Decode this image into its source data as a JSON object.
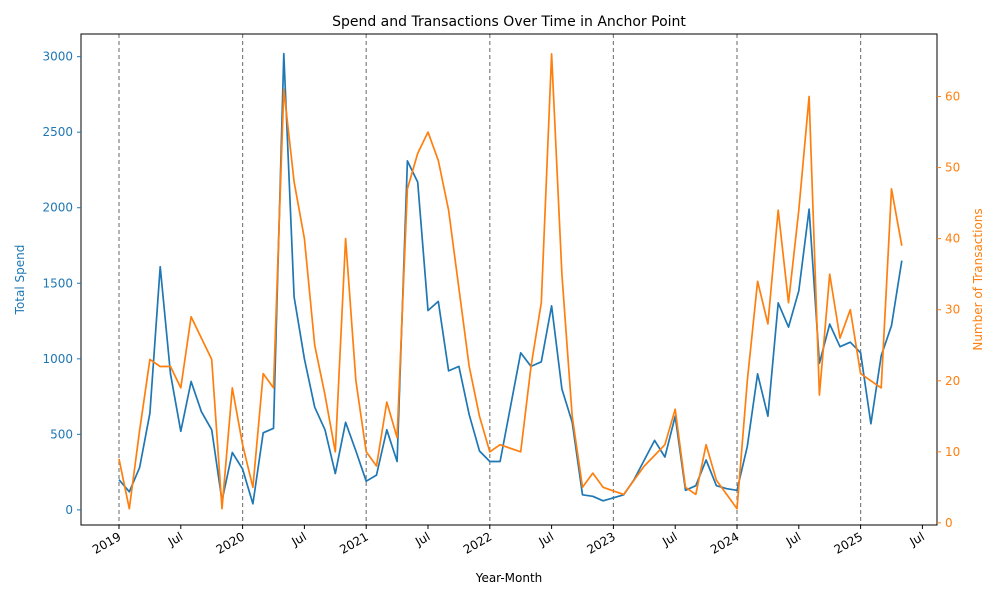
{
  "chart_data": {
    "type": "line",
    "title": "Spend and Transactions Over Time in Anchor Point",
    "xlabel": "Year-Month",
    "ylabel_left": "Total Spend",
    "ylabel_right": "Number of Transactions",
    "x_start": "2019-01",
    "x_ticks": [
      {
        "date": "2019-01",
        "label": "2019"
      },
      {
        "date": "2019-07",
        "label": "Jul"
      },
      {
        "date": "2020-01",
        "label": "2020"
      },
      {
        "date": "2020-07",
        "label": "Jul"
      },
      {
        "date": "2021-01",
        "label": "2021"
      },
      {
        "date": "2021-07",
        "label": "Jul"
      },
      {
        "date": "2022-01",
        "label": "2022"
      },
      {
        "date": "2022-07",
        "label": "Jul"
      },
      {
        "date": "2023-01",
        "label": "2023"
      },
      {
        "date": "2023-07",
        "label": "Jul"
      },
      {
        "date": "2024-01",
        "label": "2024"
      },
      {
        "date": "2024-07",
        "label": "Jul"
      },
      {
        "date": "2025-01",
        "label": "2025"
      },
      {
        "date": "2025-07",
        "label": "Jul"
      }
    ],
    "year_lines": [
      "2019-01",
      "2020-01",
      "2021-01",
      "2022-01",
      "2023-01",
      "2024-01",
      "2025-01"
    ],
    "ylim_left": [
      -100,
      3150
    ],
    "yticks_left": [
      0,
      500,
      1000,
      1500,
      2000,
      2500,
      3000
    ],
    "ylim_right": [
      -0.3,
      68.8
    ],
    "yticks_right": [
      0,
      10,
      20,
      30,
      40,
      50,
      60
    ],
    "colors": {
      "spend": "#1f77b4",
      "transactions": "#ff7f0e",
      "year_line": "#808080",
      "axis": "#000000"
    },
    "series": [
      {
        "name": "Total Spend",
        "axis": "left",
        "points": [
          [
            "2019-01",
            200
          ],
          [
            "2019-02",
            120
          ],
          [
            "2019-03",
            280
          ],
          [
            "2019-04",
            640
          ],
          [
            "2019-05",
            1610
          ],
          [
            "2019-06",
            900
          ],
          [
            "2019-07",
            520
          ],
          [
            "2019-08",
            850
          ],
          [
            "2019-09",
            650
          ],
          [
            "2019-10",
            530
          ],
          [
            "2019-11",
            60
          ],
          [
            "2019-12",
            380
          ],
          [
            "2020-01",
            270
          ],
          [
            "2020-02",
            40
          ],
          [
            "2020-03",
            510
          ],
          [
            "2020-04",
            540
          ],
          [
            "2020-05",
            3020
          ],
          [
            "2020-06",
            1410
          ],
          [
            "2020-07",
            1000
          ],
          [
            "2020-08",
            680
          ],
          [
            "2020-09",
            530
          ],
          [
            "2020-10",
            240
          ],
          [
            "2020-11",
            580
          ],
          [
            "2020-12",
            390
          ],
          [
            "2021-01",
            190
          ],
          [
            "2021-02",
            230
          ],
          [
            "2021-03",
            530
          ],
          [
            "2021-04",
            320
          ],
          [
            "2021-05",
            2310
          ],
          [
            "2021-06",
            2170
          ],
          [
            "2021-07",
            1320
          ],
          [
            "2021-08",
            1380
          ],
          [
            "2021-09",
            920
          ],
          [
            "2021-10",
            950
          ],
          [
            "2021-11",
            630
          ],
          [
            "2021-12",
            390
          ],
          [
            "2022-01",
            320
          ],
          [
            "2022-02",
            320
          ],
          [
            "2022-03",
            680
          ],
          [
            "2022-04",
            1040
          ],
          [
            "2022-05",
            950
          ],
          [
            "2022-06",
            980
          ],
          [
            "2022-07",
            1350
          ],
          [
            "2022-08",
            800
          ],
          [
            "2022-09",
            580
          ],
          [
            "2022-10",
            100
          ],
          [
            "2022-11",
            90
          ],
          [
            "2022-12",
            60
          ],
          [
            "2023-01",
            80
          ],
          [
            "2023-02",
            100
          ],
          [
            "2023-03",
            200
          ],
          [
            "2023-04",
            330
          ],
          [
            "2023-05",
            460
          ],
          [
            "2023-06",
            350
          ],
          [
            "2023-07",
            620
          ],
          [
            "2023-08",
            130
          ],
          [
            "2023-09",
            160
          ],
          [
            "2023-10",
            330
          ],
          [
            "2023-11",
            160
          ],
          [
            "2023-12",
            140
          ],
          [
            "2024-01",
            130
          ],
          [
            "2024-02",
            420
          ],
          [
            "2024-03",
            900
          ],
          [
            "2024-04",
            620
          ],
          [
            "2024-05",
            1370
          ],
          [
            "2024-06",
            1210
          ],
          [
            "2024-07",
            1450
          ],
          [
            "2024-08",
            1990
          ],
          [
            "2024-09",
            970
          ],
          [
            "2024-10",
            1230
          ],
          [
            "2024-11",
            1080
          ],
          [
            "2024-12",
            1110
          ],
          [
            "2025-01",
            1040
          ],
          [
            "2025-02",
            570
          ],
          [
            "2025-03",
            1020
          ],
          [
            "2025-04",
            1220
          ],
          [
            "2025-05",
            1650
          ]
        ]
      },
      {
        "name": "Number of Transactions",
        "axis": "right",
        "points": [
          [
            "2019-01",
            9
          ],
          [
            "2019-02",
            2
          ],
          [
            "2019-03",
            13
          ],
          [
            "2019-04",
            23
          ],
          [
            "2019-05",
            22
          ],
          [
            "2019-06",
            22
          ],
          [
            "2019-07",
            19
          ],
          [
            "2019-08",
            29
          ],
          [
            "2019-09",
            26
          ],
          [
            "2019-10",
            23
          ],
          [
            "2019-11",
            2
          ],
          [
            "2019-12",
            19
          ],
          [
            "2020-01",
            11
          ],
          [
            "2020-02",
            5
          ],
          [
            "2020-03",
            21
          ],
          [
            "2020-04",
            19
          ],
          [
            "2020-05",
            61
          ],
          [
            "2020-06",
            48
          ],
          [
            "2020-07",
            40
          ],
          [
            "2020-08",
            25
          ],
          [
            "2020-09",
            18
          ],
          [
            "2020-10",
            10
          ],
          [
            "2020-11",
            40
          ],
          [
            "2020-12",
            20
          ],
          [
            "2021-01",
            10
          ],
          [
            "2021-02",
            8
          ],
          [
            "2021-03",
            17
          ],
          [
            "2021-04",
            12
          ],
          [
            "2021-05",
            47
          ],
          [
            "2021-06",
            52
          ],
          [
            "2021-07",
            55
          ],
          [
            "2021-08",
            51
          ],
          [
            "2021-09",
            44
          ],
          [
            "2021-10",
            33
          ],
          [
            "2021-11",
            22
          ],
          [
            "2021-12",
            15
          ],
          [
            "2022-01",
            10
          ],
          [
            "2022-02",
            11
          ],
          [
            "2022-03",
            10.5
          ],
          [
            "2022-04",
            10
          ],
          [
            "2022-05",
            22
          ],
          [
            "2022-06",
            31
          ],
          [
            "2022-07",
            66
          ],
          [
            "2022-08",
            35
          ],
          [
            "2022-09",
            15
          ],
          [
            "2022-10",
            5
          ],
          [
            "2022-11",
            7
          ],
          [
            "2022-12",
            5
          ],
          [
            "2023-01",
            4.5
          ],
          [
            "2023-02",
            4
          ],
          [
            "2023-03",
            6
          ],
          [
            "2023-04",
            8
          ],
          [
            "2023-05",
            9.5
          ],
          [
            "2023-06",
            11
          ],
          [
            "2023-07",
            16
          ],
          [
            "2023-08",
            5
          ],
          [
            "2023-09",
            4
          ],
          [
            "2023-10",
            11
          ],
          [
            "2023-11",
            6
          ],
          [
            "2023-12",
            4
          ],
          [
            "2024-01",
            2
          ],
          [
            "2024-02",
            20
          ],
          [
            "2024-03",
            34
          ],
          [
            "2024-04",
            28
          ],
          [
            "2024-05",
            44
          ],
          [
            "2024-06",
            31
          ],
          [
            "2024-07",
            44
          ],
          [
            "2024-08",
            60
          ],
          [
            "2024-09",
            18
          ],
          [
            "2024-10",
            35
          ],
          [
            "2024-11",
            26
          ],
          [
            "2024-12",
            30
          ],
          [
            "2025-01",
            21
          ],
          [
            "2025-02",
            20
          ],
          [
            "2025-03",
            19
          ],
          [
            "2025-04",
            47
          ],
          [
            "2025-05",
            39
          ]
        ]
      }
    ]
  }
}
